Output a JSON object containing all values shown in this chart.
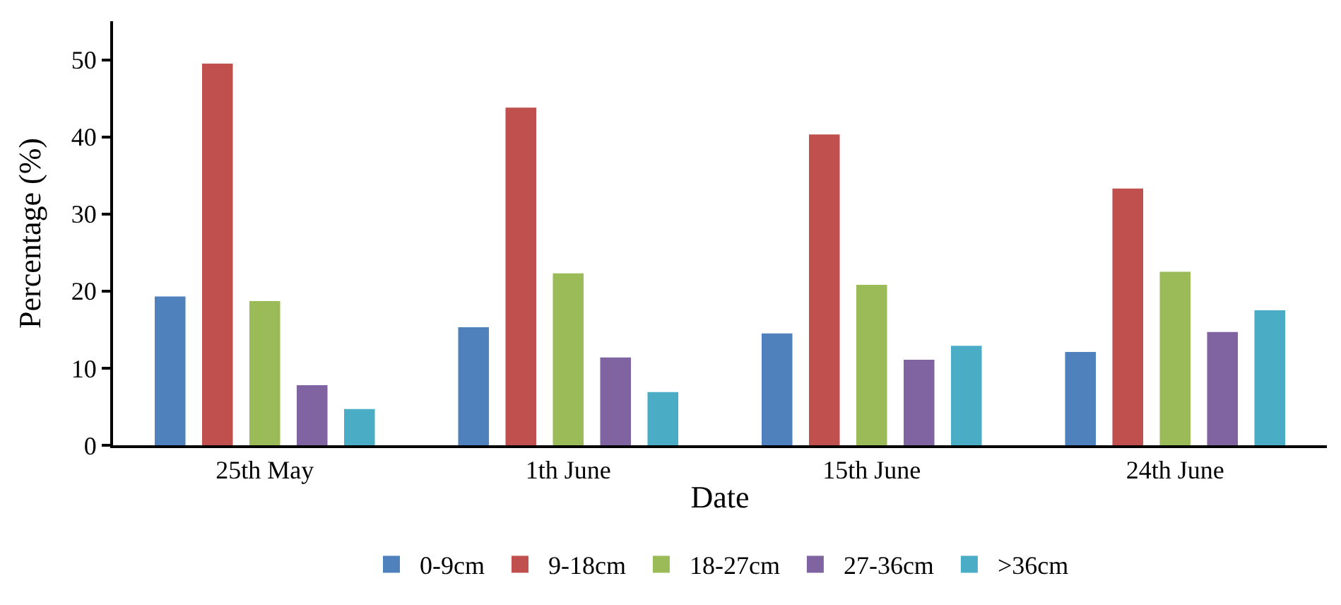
{
  "chart_data": {
    "type": "bar",
    "xlabel": "Date",
    "ylabel": "Percentage (%)",
    "categories": [
      "25th May",
      "1th June",
      "15th June",
      "24th June"
    ],
    "series": [
      {
        "name": "0-9cm",
        "color": "#4f81bd",
        "values": [
          19.3,
          15.3,
          14.5,
          12.1
        ]
      },
      {
        "name": "9-18cm",
        "color": "#c0504d",
        "values": [
          49.5,
          43.8,
          40.3,
          33.3
        ]
      },
      {
        "name": "18-27cm",
        "color": "#9bbb59",
        "values": [
          18.7,
          22.3,
          20.8,
          22.5
        ]
      },
      {
        "name": "27-36cm",
        "color": "#8064a2",
        "values": [
          7.8,
          11.4,
          11.1,
          14.7
        ]
      },
      {
        "name": ">36cm",
        "color": "#4bacc6",
        "values": [
          4.7,
          6.9,
          12.9,
          17.5
        ]
      }
    ],
    "ylim": [
      0,
      55
    ],
    "yticks": [
      0,
      10,
      20,
      30,
      40,
      50
    ],
    "grid": false,
    "legend": "bottom"
  }
}
